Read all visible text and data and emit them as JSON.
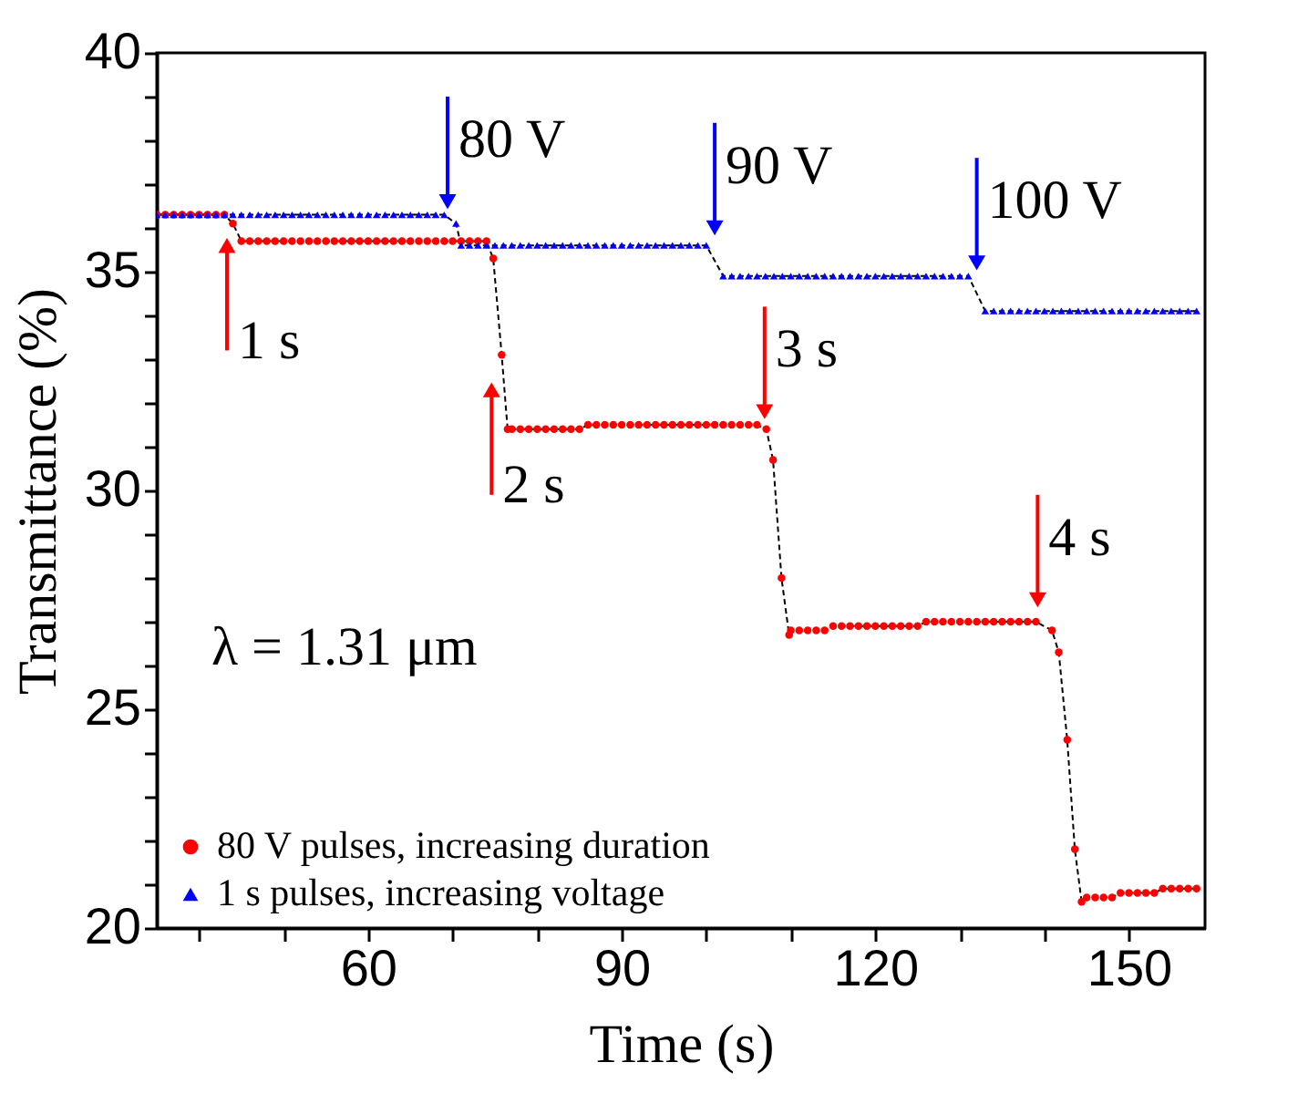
{
  "chart_data": {
    "type": "line",
    "xlabel": "Time (s)",
    "ylabel": "Transmittance (%)",
    "xlim": [
      35,
      159
    ],
    "ylim": [
      20,
      40
    ],
    "xticks": [
      {
        "value": 40,
        "label": null
      },
      {
        "value": 50,
        "label": null
      },
      60,
      {
        "value": 70,
        "label": null
      },
      {
        "value": 80,
        "label": null
      },
      90,
      {
        "value": 100,
        "label": null
      },
      {
        "value": 110,
        "label": null
      },
      120,
      {
        "value": 130,
        "label": null
      },
      {
        "value": 140,
        "label": null
      },
      150
    ],
    "yticks": [
      20,
      {
        "value": 21,
        "label": null
      },
      {
        "value": 22,
        "label": null
      },
      {
        "value": 23,
        "label": null
      },
      {
        "value": 24,
        "label": null
      },
      25,
      {
        "value": 26,
        "label": null
      },
      {
        "value": 27,
        "label": null
      },
      {
        "value": 28,
        "label": null
      },
      {
        "value": 29,
        "label": null
      },
      30,
      {
        "value": 31,
        "label": null
      },
      {
        "value": 32,
        "label": null
      },
      {
        "value": 33,
        "label": null
      },
      {
        "value": 34,
        "label": null
      },
      35,
      {
        "value": 36,
        "label": null
      },
      {
        "value": 37,
        "label": null
      },
      {
        "value": 38,
        "label": null
      },
      {
        "value": 39,
        "label": null
      },
      40
    ],
    "grid": false,
    "legend": "bottom left",
    "line_style": "dashed",
    "series": [
      {
        "name": "80 V pulses, increasing duration",
        "color": "#ff0000",
        "marker": "circle",
        "x": [
          35,
          36,
          37,
          38,
          39,
          40,
          41,
          42,
          43,
          44,
          45,
          46,
          47,
          48,
          49,
          50,
          51,
          52,
          53,
          54,
          55,
          56,
          57,
          58,
          59,
          60,
          61,
          62,
          63,
          64,
          65,
          66,
          67,
          68,
          69,
          70,
          71,
          72,
          73,
          74,
          74.8,
          75.8,
          76.5,
          77,
          78,
          79,
          80,
          81,
          82,
          83,
          84,
          85,
          86,
          87,
          88,
          89,
          90,
          91,
          92,
          93,
          94,
          95,
          96,
          97,
          98,
          99,
          100,
          101,
          102,
          103,
          104,
          105,
          106,
          107.1,
          107.9,
          108.9,
          109.8,
          110,
          111,
          112,
          113,
          114,
          115,
          116,
          117,
          118,
          119,
          120,
          121,
          122,
          123,
          124,
          125,
          126,
          127,
          128,
          129,
          130,
          131,
          132,
          133,
          134,
          135,
          136,
          137,
          138,
          139,
          140.9,
          141.7,
          142.7,
          143.6,
          144.4,
          145,
          146,
          147,
          148,
          149,
          150,
          151,
          152,
          153,
          154,
          155,
          156,
          157,
          158
        ],
        "values": [
          36.3,
          36.3,
          36.3,
          36.3,
          36.3,
          36.3,
          36.3,
          36.3,
          36.3,
          36.1,
          35.7,
          35.7,
          35.7,
          35.7,
          35.7,
          35.7,
          35.7,
          35.7,
          35.7,
          35.7,
          35.7,
          35.7,
          35.7,
          35.7,
          35.7,
          35.7,
          35.7,
          35.7,
          35.7,
          35.7,
          35.7,
          35.7,
          35.7,
          35.7,
          35.7,
          35.7,
          35.7,
          35.7,
          35.7,
          35.7,
          35.3,
          33.1,
          31.4,
          31.4,
          31.4,
          31.4,
          31.4,
          31.4,
          31.4,
          31.4,
          31.4,
          31.4,
          31.5,
          31.5,
          31.5,
          31.5,
          31.5,
          31.5,
          31.5,
          31.5,
          31.5,
          31.5,
          31.5,
          31.5,
          31.5,
          31.5,
          31.5,
          31.5,
          31.5,
          31.5,
          31.5,
          31.5,
          31.5,
          31.4,
          30.7,
          28.0,
          26.7,
          26.8,
          26.8,
          26.8,
          26.8,
          26.8,
          26.9,
          26.9,
          26.9,
          26.9,
          26.9,
          26.9,
          26.9,
          26.9,
          26.9,
          26.9,
          26.9,
          27.0,
          27.0,
          27.0,
          27.0,
          27.0,
          27.0,
          27.0,
          27.0,
          27.0,
          27.0,
          27.0,
          27.0,
          27.0,
          27.0,
          26.8,
          26.3,
          24.3,
          21.8,
          20.6,
          20.7,
          20.7,
          20.7,
          20.7,
          20.8,
          20.8,
          20.8,
          20.8,
          20.8,
          20.9,
          20.9,
          20.9,
          20.9,
          20.9
        ]
      },
      {
        "name": "1 s pulses, increasing voltage",
        "color": "#0000ff",
        "marker": "triangle",
        "x": [
          35,
          36,
          37,
          38,
          39,
          40,
          41,
          42,
          43,
          44,
          45,
          46,
          47,
          48,
          49,
          50,
          51,
          52,
          53,
          54,
          55,
          56,
          57,
          58,
          59,
          60,
          61,
          62,
          63,
          64,
          65,
          66,
          67,
          68,
          69,
          70.4,
          71,
          72,
          73,
          74,
          75,
          76,
          77,
          78,
          79,
          80,
          81,
          82,
          83,
          84,
          85,
          86,
          87,
          88,
          89,
          90,
          91,
          92,
          93,
          94,
          95,
          96,
          97,
          98,
          99,
          100,
          102,
          103,
          104,
          105,
          106,
          107,
          108,
          109,
          110,
          111,
          112,
          113,
          114,
          115,
          116,
          117,
          118,
          119,
          120,
          121,
          122,
          123,
          124,
          125,
          126,
          127,
          128,
          129,
          130,
          131,
          133,
          134,
          135,
          136,
          137,
          138,
          139,
          140,
          141,
          142,
          143,
          144,
          145,
          146,
          147,
          148,
          149,
          150,
          151,
          152,
          153,
          154,
          155,
          156,
          157,
          158
        ],
        "values": [
          36.3,
          36.3,
          36.3,
          36.3,
          36.3,
          36.3,
          36.3,
          36.3,
          36.3,
          36.3,
          36.3,
          36.3,
          36.3,
          36.3,
          36.3,
          36.3,
          36.3,
          36.3,
          36.3,
          36.3,
          36.3,
          36.3,
          36.3,
          36.3,
          36.3,
          36.3,
          36.3,
          36.3,
          36.3,
          36.3,
          36.3,
          36.3,
          36.3,
          36.3,
          36.3,
          36.1,
          35.6,
          35.6,
          35.6,
          35.6,
          35.6,
          35.6,
          35.6,
          35.6,
          35.6,
          35.6,
          35.6,
          35.6,
          35.6,
          35.6,
          35.6,
          35.6,
          35.6,
          35.6,
          35.6,
          35.6,
          35.6,
          35.6,
          35.6,
          35.6,
          35.6,
          35.6,
          35.6,
          35.6,
          35.6,
          35.6,
          34.9,
          34.9,
          34.9,
          34.9,
          34.9,
          34.9,
          34.9,
          34.9,
          34.9,
          34.9,
          34.9,
          34.9,
          34.9,
          34.9,
          34.9,
          34.9,
          34.9,
          34.9,
          34.9,
          34.9,
          34.9,
          34.9,
          34.9,
          34.9,
          34.9,
          34.9,
          34.9,
          34.9,
          34.9,
          34.9,
          34.1,
          34.1,
          34.1,
          34.1,
          34.1,
          34.1,
          34.1,
          34.1,
          34.1,
          34.1,
          34.1,
          34.1,
          34.1,
          34.1,
          34.1,
          34.1,
          34.1,
          34.1,
          34.1,
          34.1,
          34.1,
          34.1,
          34.1,
          34.1,
          34.1,
          34.1
        ]
      }
    ],
    "annotations": [
      {
        "text": "80 V",
        "x": 69.4,
        "y": 36.6
      },
      {
        "text": "90 V",
        "x": 101,
        "y": 36.0
      },
      {
        "text": "100 V",
        "x": 132,
        "y": 35.2
      },
      {
        "text": "1 s",
        "x": 43.3,
        "y": 35.6
      },
      {
        "text": "2 s",
        "x": 74.6,
        "y": 32.3
      },
      {
        "text": "3 s",
        "x": 106.9,
        "y": 31.8
      },
      {
        "text": "4 s",
        "x": 139.2,
        "y": 27.5
      },
      "λ = 1.31 μm"
    ]
  }
}
